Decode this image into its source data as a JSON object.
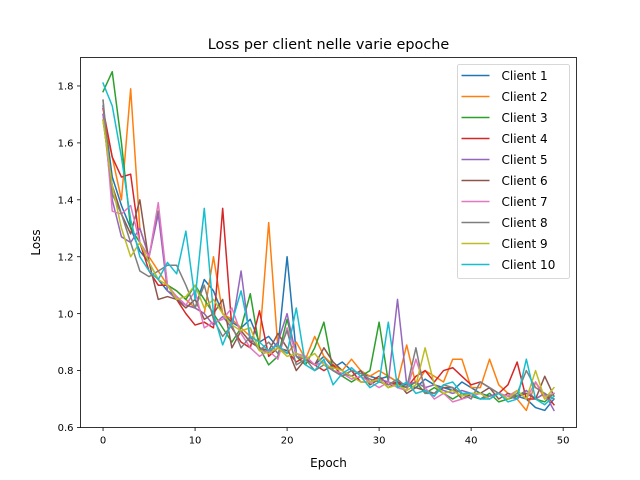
{
  "chart_data": {
    "type": "line",
    "title": "Loss per client nelle varie epoche",
    "xlabel": "Epoch",
    "ylabel": "Loss",
    "xlim": [
      -2.45,
      51.45
    ],
    "ylim": [
      0.6,
      1.9
    ],
    "xticks": [
      0,
      10,
      20,
      30,
      40,
      50
    ],
    "yticks": [
      0.6,
      0.8,
      1.0,
      1.2,
      1.4,
      1.6,
      1.8
    ],
    "ytick_labels": [
      "0.6",
      "0.8",
      "1.0",
      "1.2",
      "1.4",
      "1.6",
      "1.8"
    ],
    "grid": false,
    "legend_position": "top-right",
    "x": [
      0,
      1,
      2,
      3,
      4,
      5,
      6,
      7,
      8,
      9,
      10,
      11,
      12,
      13,
      14,
      15,
      16,
      17,
      18,
      19,
      20,
      21,
      22,
      23,
      24,
      25,
      26,
      27,
      28,
      29,
      30,
      31,
      32,
      33,
      34,
      35,
      36,
      37,
      38,
      39,
      40,
      41,
      42,
      43,
      44,
      45,
      46,
      47,
      48,
      49
    ],
    "series": [
      {
        "name": "Client 1",
        "color": "#1f77b4",
        "values": [
          1.73,
          1.48,
          1.38,
          1.3,
          1.22,
          1.18,
          1.12,
          1.08,
          1.06,
          1.03,
          1.02,
          1.12,
          1.08,
          1.0,
          0.97,
          0.95,
          0.98,
          0.9,
          0.92,
          0.88,
          1.2,
          0.86,
          0.84,
          0.82,
          0.85,
          0.81,
          0.83,
          0.8,
          0.79,
          0.78,
          0.77,
          0.78,
          0.76,
          0.75,
          0.74,
          0.77,
          0.75,
          0.74,
          0.73,
          0.76,
          0.74,
          0.72,
          0.71,
          0.72,
          0.7,
          0.71,
          0.7,
          0.67,
          0.66,
          0.7
        ]
      },
      {
        "name": "Client 2",
        "color": "#ff7f0e",
        "values": [
          1.7,
          1.55,
          1.4,
          1.79,
          1.3,
          1.2,
          1.15,
          1.1,
          1.08,
          1.05,
          1.02,
          1.0,
          1.2,
          1.0,
          0.98,
          0.95,
          0.92,
          0.9,
          1.32,
          0.88,
          0.86,
          0.9,
          0.84,
          0.92,
          0.85,
          0.82,
          0.8,
          0.84,
          0.8,
          0.78,
          0.8,
          0.78,
          0.76,
          0.89,
          0.75,
          0.8,
          0.78,
          0.76,
          0.84,
          0.84,
          0.74,
          0.74,
          0.84,
          0.75,
          0.72,
          0.7,
          0.66,
          0.76,
          0.7,
          0.72
        ]
      },
      {
        "name": "Client 3",
        "color": "#2ca02c",
        "values": [
          1.78,
          1.85,
          1.6,
          1.3,
          1.25,
          1.2,
          1.36,
          1.1,
          1.08,
          1.05,
          1.1,
          1.05,
          1.0,
          0.95,
          0.9,
          0.95,
          1.07,
          0.88,
          0.82,
          0.85,
          0.98,
          0.85,
          0.82,
          0.88,
          0.97,
          0.8,
          0.78,
          0.76,
          0.78,
          0.8,
          0.97,
          0.76,
          0.75,
          0.74,
          0.76,
          0.72,
          0.74,
          0.72,
          0.7,
          0.72,
          0.71,
          0.7,
          0.72,
          0.69,
          0.7,
          0.71,
          0.73,
          0.7,
          0.69,
          0.72
        ]
      },
      {
        "name": "Client 4",
        "color": "#d62728",
        "values": [
          1.72,
          1.55,
          1.48,
          1.49,
          1.25,
          1.15,
          1.1,
          1.1,
          1.05,
          1.0,
          0.96,
          0.97,
          0.95,
          1.37,
          0.95,
          0.9,
          0.88,
          1.01,
          0.85,
          0.88,
          0.87,
          0.83,
          0.85,
          0.82,
          0.8,
          0.82,
          0.78,
          0.8,
          0.76,
          0.76,
          0.78,
          0.75,
          0.76,
          0.74,
          0.78,
          0.8,
          0.76,
          0.8,
          0.81,
          0.78,
          0.75,
          0.76,
          0.74,
          0.72,
          0.75,
          0.83,
          0.7,
          0.7,
          0.72,
          0.68
        ]
      },
      {
        "name": "Client 5",
        "color": "#9467bd",
        "values": [
          1.7,
          1.4,
          1.27,
          1.25,
          1.3,
          1.2,
          1.35,
          1.08,
          1.05,
          1.03,
          1.02,
          1.0,
          0.96,
          0.99,
          0.95,
          1.15,
          0.9,
          0.88,
          0.86,
          0.9,
          1.0,
          0.85,
          0.84,
          0.82,
          0.83,
          0.8,
          0.79,
          0.78,
          0.8,
          0.76,
          0.77,
          0.76,
          1.05,
          0.75,
          0.76,
          0.74,
          0.75,
          0.73,
          0.72,
          0.73,
          0.72,
          0.7,
          0.71,
          0.72,
          0.71,
          0.7,
          0.73,
          0.7,
          0.72,
          0.66
        ]
      },
      {
        "name": "Client 6",
        "color": "#8c564b",
        "values": [
          1.68,
          1.45,
          1.35,
          1.28,
          1.4,
          1.18,
          1.05,
          1.06,
          1.05,
          1.02,
          1.05,
          0.98,
          1.0,
          1.05,
          0.88,
          0.94,
          0.9,
          0.88,
          0.87,
          0.93,
          0.88,
          0.8,
          0.84,
          0.82,
          0.88,
          0.83,
          0.8,
          0.78,
          0.8,
          0.75,
          0.77,
          0.74,
          0.76,
          0.72,
          0.74,
          0.73,
          0.72,
          0.74,
          0.74,
          0.7,
          0.72,
          0.72,
          0.74,
          0.7,
          0.72,
          0.71,
          0.72,
          0.7,
          0.78,
          0.71
        ]
      },
      {
        "name": "Client 7",
        "color": "#e377c2",
        "values": [
          1.75,
          1.36,
          1.35,
          1.38,
          1.25,
          1.2,
          1.39,
          1.1,
          1.06,
          1.03,
          1.08,
          0.95,
          0.97,
          0.98,
          1.02,
          0.93,
          0.88,
          0.85,
          0.87,
          0.84,
          0.95,
          0.86,
          0.85,
          0.82,
          0.83,
          0.8,
          0.79,
          0.77,
          0.78,
          0.76,
          0.74,
          0.76,
          0.74,
          0.73,
          0.84,
          0.74,
          0.7,
          0.72,
          0.69,
          0.7,
          0.71,
          0.72,
          0.7,
          0.72,
          0.71,
          0.73,
          0.7,
          0.76,
          0.71,
          0.72
        ]
      },
      {
        "name": "Client 8",
        "color": "#7f7f7f",
        "values": [
          1.75,
          1.42,
          1.35,
          1.25,
          1.15,
          1.13,
          1.15,
          1.17,
          1.17,
          1.1,
          1.02,
          1.1,
          0.98,
          0.92,
          0.96,
          0.88,
          0.92,
          0.87,
          0.9,
          0.86,
          0.94,
          0.82,
          0.84,
          0.8,
          0.82,
          0.8,
          0.78,
          0.8,
          0.79,
          0.77,
          0.76,
          0.75,
          0.77,
          0.74,
          0.88,
          0.72,
          0.72,
          0.75,
          0.74,
          0.72,
          0.7,
          0.76,
          0.74,
          0.72,
          0.7,
          0.72,
          0.8,
          0.74,
          0.72,
          0.7
        ]
      },
      {
        "name": "Client 9",
        "color": "#bcbd22",
        "values": [
          1.68,
          1.45,
          1.3,
          1.2,
          1.25,
          1.18,
          1.12,
          1.1,
          1.05,
          1.06,
          1.1,
          1.02,
          1.05,
          1.0,
          0.96,
          0.94,
          0.95,
          0.87,
          0.86,
          0.88,
          0.85,
          0.86,
          0.84,
          0.86,
          0.82,
          0.81,
          0.8,
          0.78,
          0.76,
          0.76,
          0.77,
          0.74,
          0.75,
          0.73,
          0.75,
          0.88,
          0.75,
          0.72,
          0.73,
          0.71,
          0.72,
          0.72,
          0.7,
          0.72,
          0.7,
          0.73,
          0.7,
          0.8,
          0.7,
          0.74
        ]
      },
      {
        "name": "Client 10",
        "color": "#17becf",
        "values": [
          1.81,
          1.73,
          1.55,
          1.33,
          1.2,
          1.15,
          1.12,
          1.18,
          1.14,
          1.29,
          1.05,
          1.37,
          1.0,
          0.89,
          0.97,
          1.08,
          0.92,
          0.9,
          0.87,
          0.89,
          0.86,
          1.02,
          0.82,
          0.8,
          0.84,
          0.75,
          0.79,
          0.81,
          0.78,
          0.74,
          0.76,
          0.97,
          0.74,
          0.76,
          0.72,
          0.73,
          0.71,
          0.75,
          0.76,
          0.72,
          0.72,
          0.7,
          0.7,
          0.72,
          0.69,
          0.7,
          0.84,
          0.7,
          0.68,
          0.71
        ]
      }
    ]
  }
}
